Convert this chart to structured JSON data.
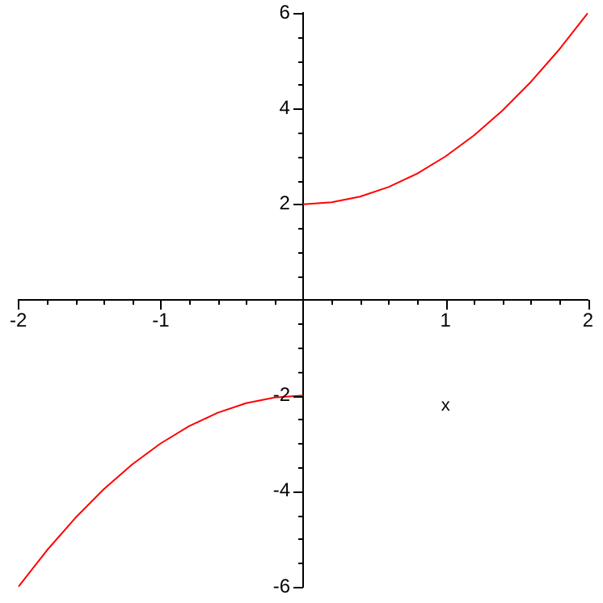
{
  "chart_data": {
    "type": "line",
    "xlabel": "x",
    "xlim": [
      -2,
      2
    ],
    "ylim": [
      -6,
      6
    ],
    "xticks": [
      -2,
      {
        "value": -1.8,
        "label": null
      },
      {
        "value": -1.6,
        "label": null
      },
      {
        "value": -1.4,
        "label": null
      },
      {
        "value": -1.2,
        "label": null
      },
      -1,
      {
        "value": -0.8,
        "label": null
      },
      {
        "value": -0.6,
        "label": null
      },
      {
        "value": -0.4,
        "label": null
      },
      {
        "value": -0.2,
        "label": null
      },
      {
        "value": 0.2,
        "label": null
      },
      {
        "value": 0.4,
        "label": null
      },
      {
        "value": 0.6,
        "label": null
      },
      {
        "value": 0.8,
        "label": null
      },
      1,
      {
        "value": 1.2,
        "label": null
      },
      {
        "value": 1.4,
        "label": null
      },
      {
        "value": 1.6,
        "label": null
      },
      {
        "value": 1.8,
        "label": null
      },
      2
    ],
    "yticks": [
      -6,
      {
        "value": -5.5,
        "label": null
      },
      {
        "value": -5,
        "label": null
      },
      {
        "value": -4.5,
        "label": null
      },
      -4,
      {
        "value": -3.5,
        "label": null
      },
      {
        "value": -3,
        "label": null
      },
      {
        "value": -2.5,
        "label": null
      },
      -2,
      {
        "value": -1.5,
        "label": null
      },
      {
        "value": -1,
        "label": null
      },
      {
        "value": -0.5,
        "label": null
      },
      {
        "value": 0.5,
        "label": null
      },
      {
        "value": 1,
        "label": null
      },
      {
        "value": 1.5,
        "label": null
      },
      2,
      {
        "value": 2.5,
        "label": null
      },
      {
        "value": 3,
        "label": null
      },
      {
        "value": 3.5,
        "label": null
      },
      4,
      {
        "value": 4.5,
        "label": null
      },
      {
        "value": 5,
        "label": null
      },
      {
        "value": 5.5,
        "label": null
      },
      6
    ],
    "grid": false,
    "legend": false,
    "marker": "none",
    "line_style": "solid",
    "series": [
      {
        "color": "#ff0000",
        "x": [
          0,
          0.2,
          0.4,
          0.6,
          0.8,
          1,
          1.2,
          1.4,
          1.6,
          1.8,
          2
        ],
        "values": [
          2,
          2.04,
          2.16,
          2.36,
          2.64,
          3,
          3.44,
          3.96,
          4.56,
          5.24,
          6
        ]
      },
      {
        "color": "#ff0000",
        "x": [
          -2,
          -1.8,
          -1.6,
          -1.4,
          -1.2,
          -1,
          -0.8,
          -0.6,
          -0.4,
          -0.2,
          0
        ],
        "values": [
          -6,
          -5.24,
          -4.56,
          -3.96,
          -3.44,
          -3,
          -2.64,
          -2.36,
          -2.16,
          -2.04,
          -2
        ]
      }
    ]
  }
}
